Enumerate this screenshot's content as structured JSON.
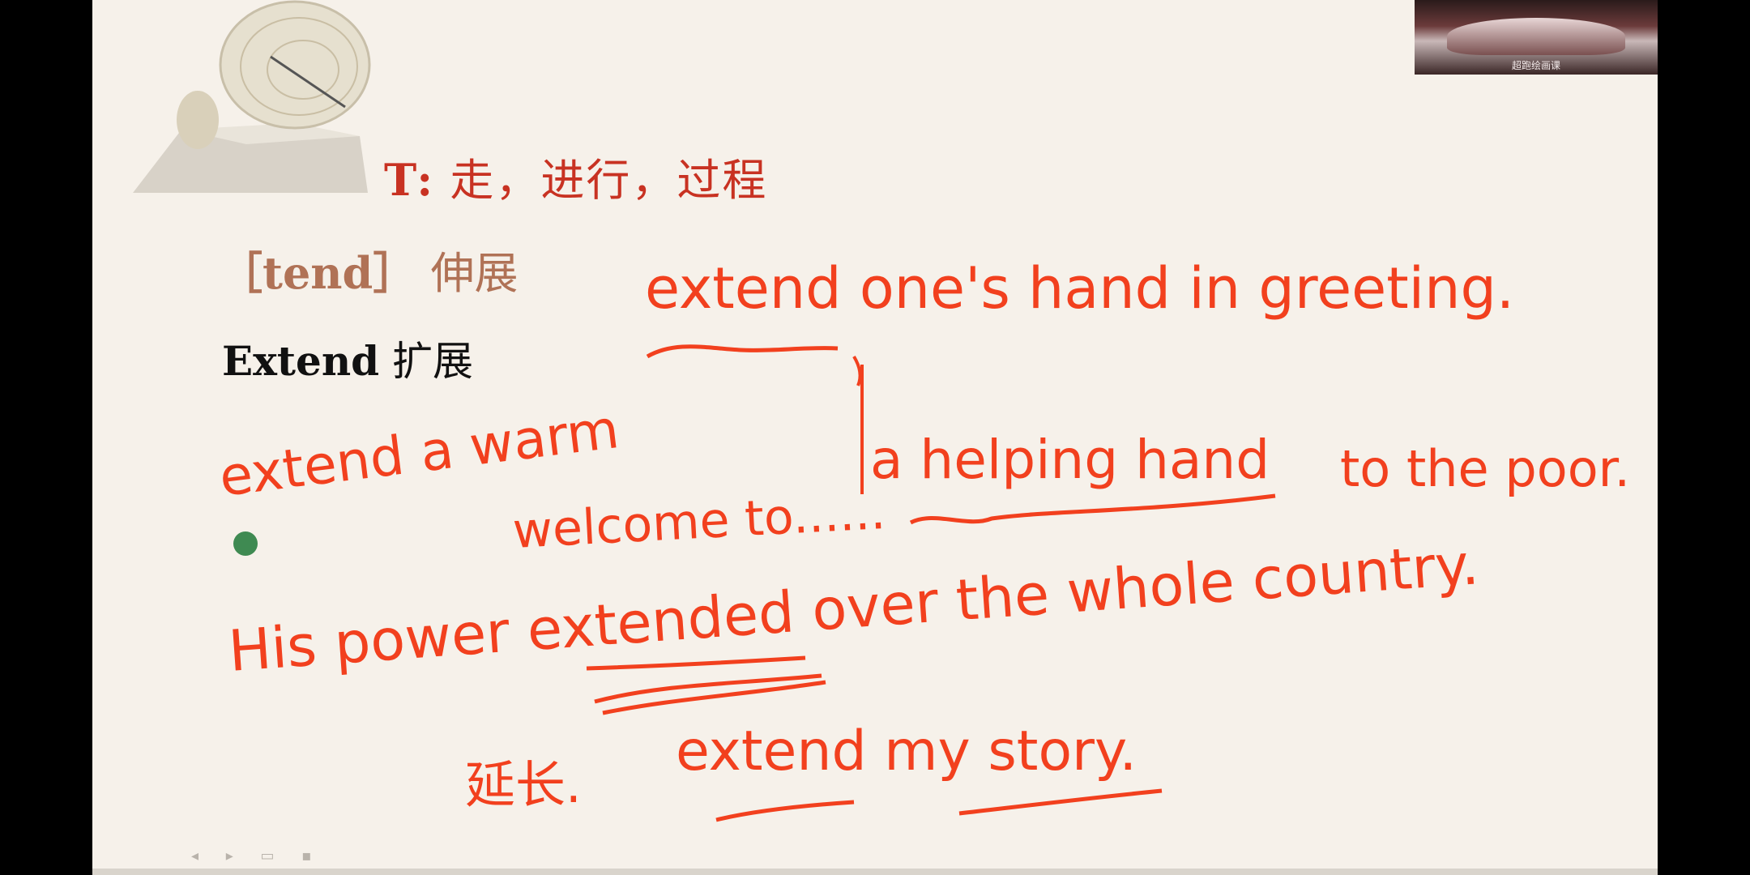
{
  "slide": {
    "title_prefix": "T:",
    "title_text": "走，进行，过程",
    "root_word": "［tend］",
    "root_meaning": "伸展",
    "headword": "Extend",
    "headword_meaning": "扩展"
  },
  "handwriting": {
    "line1": "extend one's hand in greeting.",
    "line2a": "extend a warm",
    "line2b": "welcome to......",
    "line2c": "a helping hand",
    "line2d": "to the poor.",
    "line3": "His power extended over the whole country.",
    "line4_cn": "延长.",
    "line4": "extend my story."
  },
  "video": {
    "caption": "超跑绘画课"
  },
  "controls": {
    "label": "◂ ▸ ▭ ▪"
  },
  "colors": {
    "ink": "#f2401e",
    "title": "#c83222",
    "root": "#b07256",
    "background": "#f6f1ea"
  }
}
